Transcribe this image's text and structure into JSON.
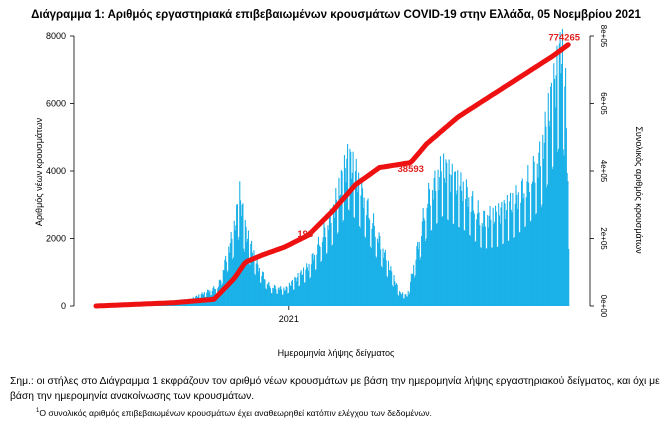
{
  "chart_data": {
    "type": "bar",
    "title": "Διάγραμμα 1: Αριθμός εργαστηριακά επιβεβαιωμένων κρουσμάτων COVID-19 στην Ελλάδα, 05 Νοεμβρίου 2021",
    "xlabel": "Ημερομηνία λήψης δείγματος",
    "ylabel": "Αριθμός νέων κρουσμάτων",
    "y2label": "Συνολικός αριθμός κρουσμάτων",
    "x_tick_labels": [
      "2021"
    ],
    "ylim": [
      0,
      8000
    ],
    "yticks": [
      0,
      2000,
      4000,
      6000,
      8000
    ],
    "y2lim": [
      0,
      800000
    ],
    "y2ticks": [
      "0e+00",
      "2e+05",
      "4e+05",
      "6e+05",
      "8e+05"
    ],
    "grid": false,
    "legend": "none",
    "bar_color": "#1ab0e8",
    "line_color": "#ee1111",
    "period_days": 615,
    "daily_keypoints": [
      [
        0,
        20
      ],
      [
        60,
        80
      ],
      [
        120,
        200
      ],
      [
        155,
        600
      ],
      [
        175,
        2300
      ],
      [
        182,
        3300
      ],
      [
        190,
        2200
      ],
      [
        205,
        1200
      ],
      [
        220,
        600
      ],
      [
        240,
        500
      ],
      [
        270,
        1200
      ],
      [
        300,
        2800
      ],
      [
        310,
        3600
      ],
      [
        320,
        4400
      ],
      [
        330,
        3900
      ],
      [
        345,
        2900
      ],
      [
        370,
        1300
      ],
      [
        385,
        400
      ],
      [
        395,
        300
      ],
      [
        405,
        1400
      ],
      [
        420,
        3200
      ],
      [
        440,
        4100
      ],
      [
        455,
        3700
      ],
      [
        470,
        3400
      ],
      [
        490,
        2600
      ],
      [
        510,
        2700
      ],
      [
        530,
        3100
      ],
      [
        550,
        3800
      ],
      [
        565,
        4500
      ],
      [
        575,
        5800
      ],
      [
        585,
        6900
      ],
      [
        591,
        7700
      ],
      [
        596,
        6300
      ],
      [
        600,
        2600
      ]
    ],
    "cumulative_line_keypoints": [
      [
        0,
        0
      ],
      [
        100,
        10000
      ],
      [
        150,
        20000
      ],
      [
        175,
        80000
      ],
      [
        190,
        130000
      ],
      [
        210,
        150000
      ],
      [
        240,
        175000
      ],
      [
        270,
        210000
      ],
      [
        300,
        280000
      ],
      [
        330,
        360000
      ],
      [
        360,
        410000
      ],
      [
        400,
        425000
      ],
      [
        420,
        480000
      ],
      [
        460,
        560000
      ],
      [
        500,
        620000
      ],
      [
        540,
        680000
      ],
      [
        580,
        740000
      ],
      [
        600,
        774265
      ]
    ],
    "annotations": [
      {
        "day": 271,
        "value": 193000,
        "label": "193"
      },
      {
        "day": 405,
        "value": 385000,
        "label": "38593"
      },
      {
        "day": 600,
        "value": 774265,
        "label": "774265"
      }
    ]
  },
  "note": "Σημ.: οι στήλες στο Διάγραμμα 1 εκφράζουν τον αριθμό νέων κρουσμάτων με βάση την ημερομηνία λήψης εργαστηριακού δείγματος, και όχι με βάση την ημερομηνία ανακοίνωσης των κρουσμάτων.",
  "footnote_mark": "1",
  "footnote": "Ο συνολικός αριθμός επιβεβαιωμένων κρουσμάτων έχει αναθεωρηθεί κατόπιν ελέγχου των δεδομένων."
}
